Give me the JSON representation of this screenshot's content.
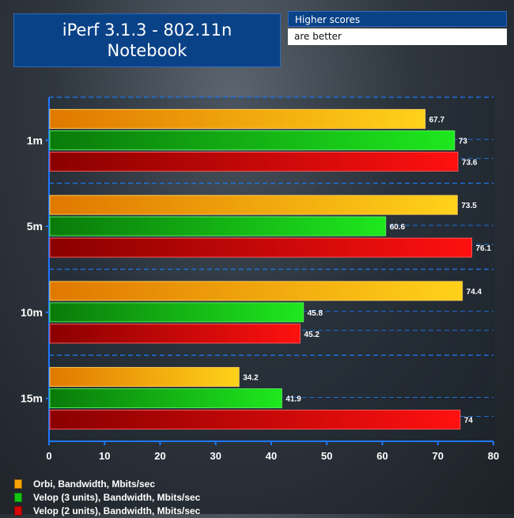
{
  "title_lines": [
    "iPerf 3.1.3 - 802.11n",
    "Notebook"
  ],
  "note": {
    "line1": "Higher scores",
    "line2": "are better"
  },
  "chart_data": {
    "type": "bar",
    "orientation": "horizontal",
    "categories": [
      "1m",
      "5m",
      "10m",
      "15m"
    ],
    "series": [
      {
        "name": "Orbi, Bandwidth, Mbits/sec",
        "values": [
          67.7,
          73.5,
          74.4,
          34.2
        ],
        "color": "#f5a400"
      },
      {
        "name": "Velop (3 units), Bandwidth, Mbits/sec",
        "values": [
          73,
          60.6,
          45.8,
          41.9
        ],
        "color": "#13c413"
      },
      {
        "name": "Velop (2 units), Bandwidth, Mbits/sec",
        "values": [
          73.6,
          76.1,
          45.2,
          74
        ],
        "color": "#d80808"
      }
    ],
    "xlim": [
      0,
      80
    ],
    "xticks": [
      "0",
      "10",
      "20",
      "30",
      "40",
      "50",
      "60",
      "70",
      "80"
    ],
    "grid": true,
    "legend": "bottom-left"
  }
}
